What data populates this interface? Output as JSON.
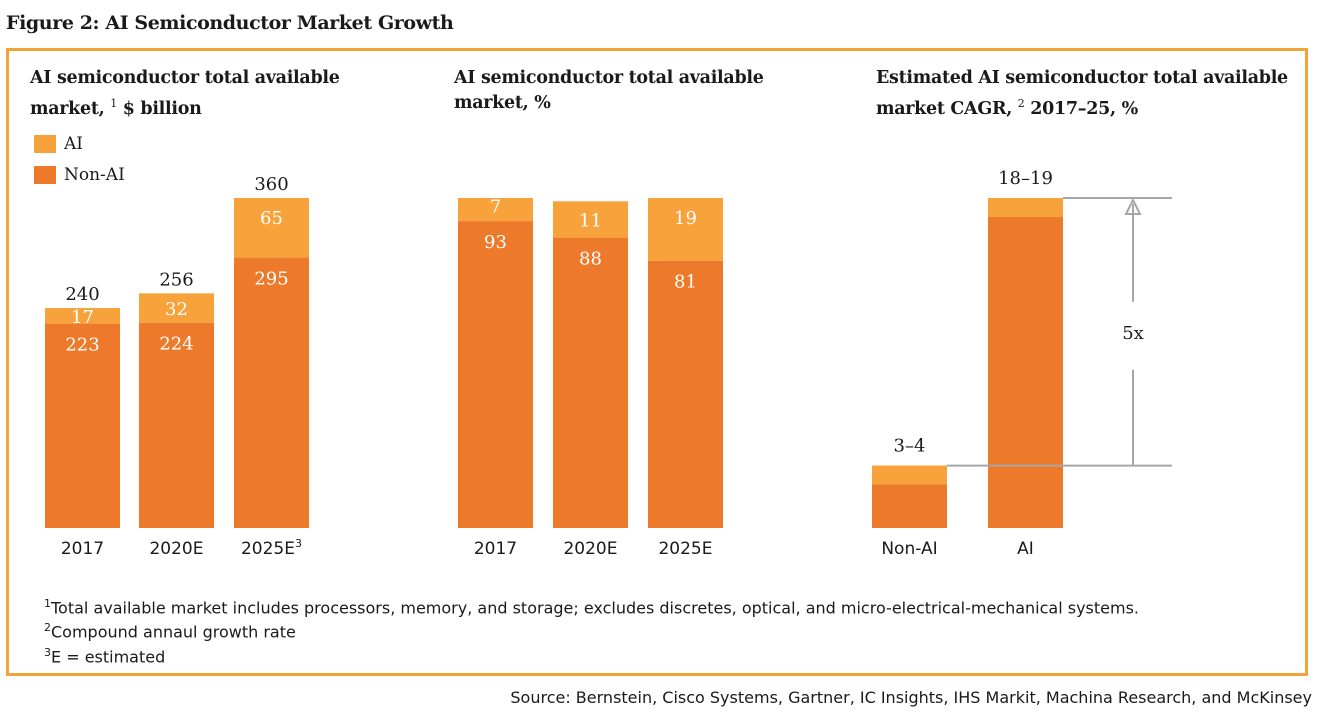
{
  "figure_title": "Figure 2: AI Semiconductor Market Growth",
  "colors": {
    "ai": "#f7a23b",
    "non_ai": "#ec7a2a",
    "border": "#f2a33a",
    "ref_line": "#a6a6a6"
  },
  "legend": [
    {
      "label": "AI",
      "color": "#f7a23b"
    },
    {
      "label": "Non-AI",
      "color": "#ec7a2a"
    }
  ],
  "panels": {
    "p1": {
      "title_line1": "AI semiconductor total available",
      "title_line2_pre": "market, ",
      "title_sup": "1",
      "title_line2_post": " $ billion"
    },
    "p2": {
      "title_line1": "AI semiconductor total available",
      "title_line2": "market, %"
    },
    "p3": {
      "title_line1": "Estimated AI semiconductor total available",
      "title_line2_pre": "market CAGR, ",
      "title_sup": "2",
      "title_line2_post": " 2017–25,  %"
    }
  },
  "chart_data": [
    {
      "type": "bar",
      "stacked": true,
      "title": "AI semiconductor total available market, $ billion",
      "categories": [
        "2017",
        "2020E",
        "2025E"
      ],
      "category_sups": [
        "",
        "",
        "3"
      ],
      "series": [
        {
          "name": "Non-AI",
          "values": [
            223,
            224,
            295
          ]
        },
        {
          "name": "AI",
          "values": [
            17,
            32,
            65
          ]
        }
      ],
      "totals": [
        "240",
        "256",
        "360"
      ]
    },
    {
      "type": "bar",
      "stacked": true,
      "title": "AI semiconductor total available market, %",
      "categories": [
        "2017",
        "2020E",
        "2025E"
      ],
      "series": [
        {
          "name": "Non-AI",
          "values": [
            93,
            88,
            81
          ]
        },
        {
          "name": "AI",
          "values": [
            7,
            11,
            19
          ]
        }
      ]
    },
    {
      "type": "bar",
      "title": "Estimated AI semiconductor total available market CAGR, 2017–25, %",
      "categories": [
        "Non-AI",
        "AI"
      ],
      "values": [
        3.5,
        18.5
      ],
      "value_labels": [
        "3–4",
        "18–19"
      ],
      "annotation": "5x"
    }
  ],
  "footnotes": [
    {
      "sup": "1",
      "text": "Total available market includes processors, memory, and storage; excludes discretes, optical, and micro-electrical-mechanical systems."
    },
    {
      "sup": "2",
      "text": "Compound annaul growth rate"
    },
    {
      "sup": "3",
      "text": "E = estimated"
    }
  ],
  "source": "Source: Bernstein, Cisco Systems, Gartner, IC Insights, IHS Markit, Machina Research, and McKinsey"
}
